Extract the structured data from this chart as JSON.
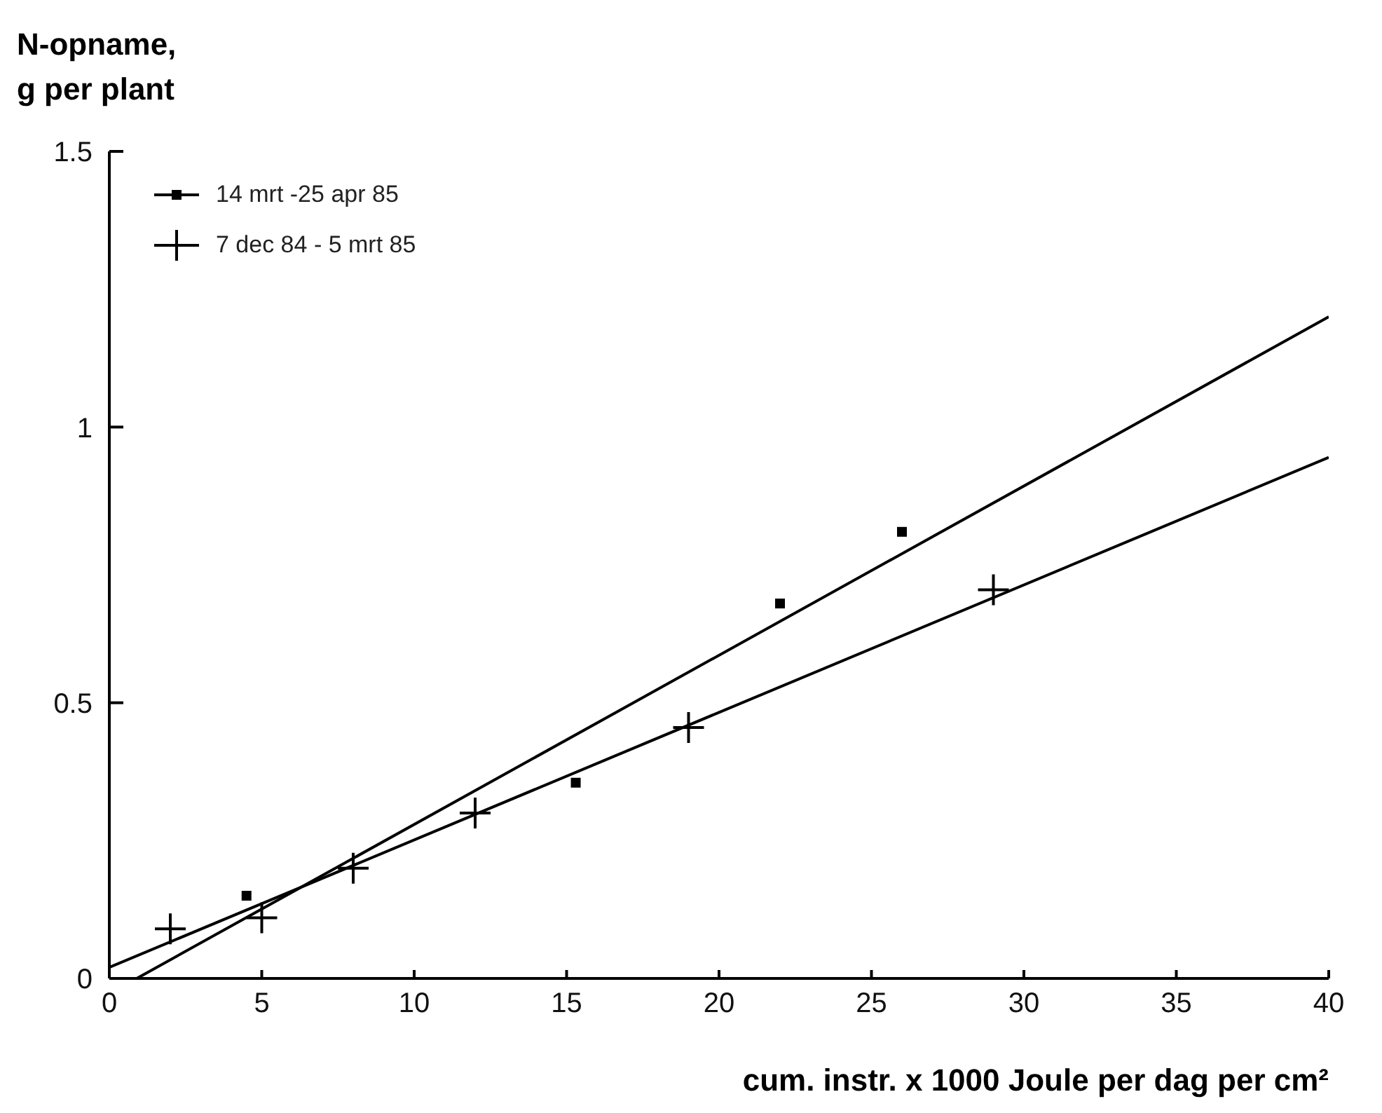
{
  "chart_data": {
    "type": "scatter",
    "xlabel": "cum. instr. x 1000 Joule per dag per cm²",
    "ylabel": "N-opname,\ng per plant",
    "xlim": [
      0,
      40
    ],
    "xticks": [
      0,
      5,
      10,
      15,
      20,
      25,
      30,
      35,
      40
    ],
    "ylim": [
      0,
      1.5
    ],
    "yticks": [
      0,
      0.5,
      1,
      1.5
    ],
    "grid": false,
    "legend": "top left",
    "series": [
      {
        "name": "14 mrt -25 apr 85",
        "marker": "square",
        "color": "#000000",
        "x": [
          4.5,
          15.3,
          22,
          26
        ],
        "values": [
          0.15,
          0.355,
          0.68,
          0.81
        ]
      },
      {
        "name": "7 dec 84 - 5 mrt 85",
        "marker": "cross",
        "color": "#000000",
        "x": [
          2,
          5,
          8,
          12,
          19,
          29
        ],
        "values": [
          0.09,
          0.11,
          0.2,
          0.3,
          0.455,
          0.705
        ]
      },
      {
        "type": "line",
        "color": "#000000",
        "x": [
          0.9,
          40
        ],
        "values": [
          0,
          1.2
        ]
      },
      {
        "type": "line",
        "color": "#000000",
        "x": [
          0,
          40
        ],
        "values": [
          0.02,
          0.945
        ]
      }
    ]
  }
}
